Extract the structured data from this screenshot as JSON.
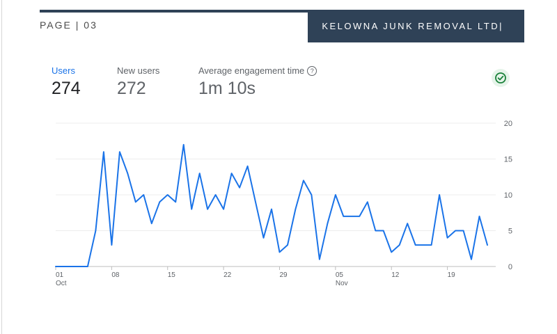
{
  "header": {
    "page_label": "PAGE | 03",
    "company": "KELOWNA JUNK REMOVAL LTD|"
  },
  "metrics": [
    {
      "label": "Users",
      "value": "274"
    },
    {
      "label": "New users",
      "value": "272"
    },
    {
      "label": "Average engagement time",
      "value": "1m 10s"
    }
  ],
  "help_symbol": "?",
  "colors": {
    "accent": "#1a73e8",
    "banner": "#2f4257",
    "check": "#188038"
  },
  "chart_data": {
    "type": "line",
    "series": [
      {
        "name": "Users",
        "values": [
          0,
          0,
          0,
          0,
          0,
          5,
          16,
          3,
          16,
          13,
          9,
          10,
          6,
          9,
          10,
          9,
          17,
          8,
          13,
          8,
          10,
          8,
          13,
          11,
          14,
          9,
          4,
          8,
          2,
          3,
          8,
          12,
          10,
          1,
          6,
          10,
          7,
          7,
          7,
          9,
          5,
          5,
          2,
          3,
          6,
          3,
          3,
          3,
          10,
          4,
          5,
          5,
          1,
          7,
          3
        ]
      }
    ],
    "x_tick_labels": [
      {
        "index": 0,
        "day": "01",
        "month": "Oct"
      },
      {
        "index": 7,
        "day": "08",
        "month": ""
      },
      {
        "index": 14,
        "day": "15",
        "month": ""
      },
      {
        "index": 21,
        "day": "22",
        "month": ""
      },
      {
        "index": 28,
        "day": "29",
        "month": ""
      },
      {
        "index": 35,
        "day": "05",
        "month": "Nov"
      },
      {
        "index": 42,
        "day": "12",
        "month": ""
      },
      {
        "index": 49,
        "day": "19",
        "month": ""
      }
    ],
    "y_ticks": [
      "0",
      "5",
      "10",
      "15",
      "20"
    ],
    "ylim": [
      0,
      20
    ],
    "grid": true
  }
}
